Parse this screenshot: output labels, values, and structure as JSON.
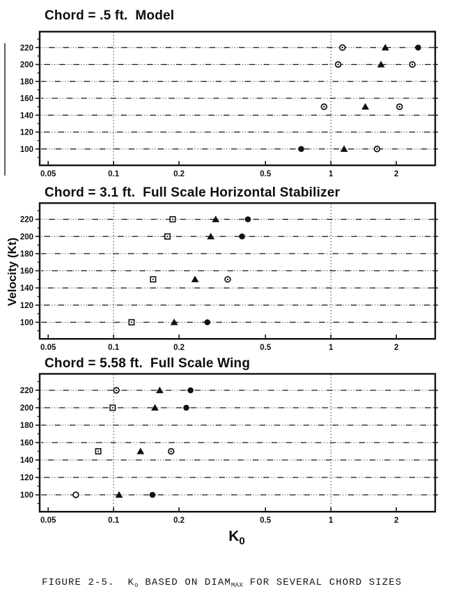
{
  "page": {
    "background": "#ffffff",
    "ink": "#111111"
  },
  "labels": {
    "y_axis": "Velocity (Kt)",
    "x_axis_main": "K",
    "x_axis_sub": "0"
  },
  "caption": {
    "prefix": "FIGURE 2-5.  K",
    "k_sub": "o",
    "mid": " BASED ON DIAM",
    "max_sub": "MAX",
    "suffix": " FOR SEVERAL CHORD SIZES"
  },
  "chart_data": [
    {
      "type": "scatter",
      "title": "Chord = .5 ft.  Model",
      "x_scale": "log",
      "xlim": [
        0.0457,
        3.02
      ],
      "ylim": [
        80,
        240
      ],
      "x_ticks": [
        {
          "v": 0.05,
          "label": "0.05"
        },
        {
          "v": 0.1,
          "label": "0.1"
        },
        {
          "v": 0.2,
          "label": "0.2"
        },
        {
          "v": 0.5,
          "label": "0.5"
        },
        {
          "v": 1,
          "label": "1"
        },
        {
          "v": 2,
          "label": "2"
        }
      ],
      "y_ticks": [
        100,
        120,
        140,
        160,
        180,
        200,
        220
      ],
      "y_minor_step": 10,
      "x_gridlines": [
        0.1,
        1
      ],
      "grid": "horizontal-dotted",
      "points": [
        {
          "k": 0.73,
          "v": 100,
          "marker": "filled-circle"
        },
        {
          "k": 1.15,
          "v": 100,
          "marker": "filled-triangle"
        },
        {
          "k": 1.63,
          "v": 100,
          "marker": "open-circle-dot"
        },
        {
          "k": 0.93,
          "v": 150,
          "marker": "open-circle-dot"
        },
        {
          "k": 1.44,
          "v": 150,
          "marker": "filled-triangle"
        },
        {
          "k": 2.07,
          "v": 150,
          "marker": "open-circle-dot"
        },
        {
          "k": 1.08,
          "v": 200,
          "marker": "open-circle-dot"
        },
        {
          "k": 1.7,
          "v": 200,
          "marker": "filled-triangle"
        },
        {
          "k": 2.37,
          "v": 200,
          "marker": "open-circle-dot"
        },
        {
          "k": 1.13,
          "v": 220,
          "marker": "open-circle-dot"
        },
        {
          "k": 1.78,
          "v": 220,
          "marker": "filled-triangle"
        },
        {
          "k": 2.52,
          "v": 220,
          "marker": "filled-circle"
        }
      ]
    },
    {
      "type": "scatter",
      "title": "Chord = 3.1 ft.  Full Scale Horizontal Stabilizer",
      "x_scale": "log",
      "xlim": [
        0.0457,
        3.02
      ],
      "ylim": [
        80,
        240
      ],
      "x_ticks": [
        {
          "v": 0.05,
          "label": "0.05"
        },
        {
          "v": 0.1,
          "label": "0.1"
        },
        {
          "v": 0.2,
          "label": "0.2"
        },
        {
          "v": 0.5,
          "label": "0.5"
        },
        {
          "v": 1,
          "label": "1"
        },
        {
          "v": 2,
          "label": "2"
        }
      ],
      "y_ticks": [
        100,
        120,
        140,
        160,
        180,
        200,
        220
      ],
      "y_minor_step": 10,
      "x_gridlines": [
        0.1,
        1
      ],
      "grid": "horizontal-dotted",
      "points": [
        {
          "k": 0.121,
          "v": 100,
          "marker": "open-square-dot"
        },
        {
          "k": 0.19,
          "v": 100,
          "marker": "filled-triangle"
        },
        {
          "k": 0.27,
          "v": 100,
          "marker": "filled-circle"
        },
        {
          "k": 0.152,
          "v": 150,
          "marker": "open-square-dot"
        },
        {
          "k": 0.237,
          "v": 150,
          "marker": "filled-triangle"
        },
        {
          "k": 0.335,
          "v": 150,
          "marker": "open-circle-dot"
        },
        {
          "k": 0.177,
          "v": 200,
          "marker": "open-square-dot"
        },
        {
          "k": 0.28,
          "v": 200,
          "marker": "filled-triangle"
        },
        {
          "k": 0.39,
          "v": 200,
          "marker": "filled-circle"
        },
        {
          "k": 0.187,
          "v": 220,
          "marker": "open-square-dot"
        },
        {
          "k": 0.295,
          "v": 220,
          "marker": "filled-triangle"
        },
        {
          "k": 0.415,
          "v": 220,
          "marker": "filled-circle"
        }
      ]
    },
    {
      "type": "scatter",
      "title": "Chord = 5.58 ft.  Full Scale Wing",
      "x_scale": "log",
      "xlim": [
        0.0457,
        3.02
      ],
      "ylim": [
        80,
        240
      ],
      "x_ticks": [
        {
          "v": 0.05,
          "label": "0.05"
        },
        {
          "v": 0.1,
          "label": "0.1"
        },
        {
          "v": 0.2,
          "label": "0.2"
        },
        {
          "v": 0.5,
          "label": "0.5"
        },
        {
          "v": 1,
          "label": "1"
        },
        {
          "v": 2,
          "label": "2"
        }
      ],
      "y_ticks": [
        100,
        120,
        140,
        160,
        180,
        200,
        220
      ],
      "y_minor_step": 10,
      "x_gridlines": [
        0.1,
        1
      ],
      "grid": "horizontal-dotted",
      "points": [
        {
          "k": 0.067,
          "v": 100,
          "marker": "open-circle"
        },
        {
          "k": 0.106,
          "v": 100,
          "marker": "filled-triangle"
        },
        {
          "k": 0.151,
          "v": 100,
          "marker": "filled-circle"
        },
        {
          "k": 0.085,
          "v": 150,
          "marker": "open-square-dot"
        },
        {
          "k": 0.133,
          "v": 150,
          "marker": "filled-triangle"
        },
        {
          "k": 0.184,
          "v": 150,
          "marker": "open-circle-dot"
        },
        {
          "k": 0.099,
          "v": 200,
          "marker": "open-square-dot"
        },
        {
          "k": 0.155,
          "v": 200,
          "marker": "filled-triangle"
        },
        {
          "k": 0.216,
          "v": 200,
          "marker": "filled-circle"
        },
        {
          "k": 0.103,
          "v": 220,
          "marker": "open-circle-dot"
        },
        {
          "k": 0.163,
          "v": 220,
          "marker": "filled-triangle"
        },
        {
          "k": 0.226,
          "v": 220,
          "marker": "filled-circle"
        }
      ]
    }
  ]
}
